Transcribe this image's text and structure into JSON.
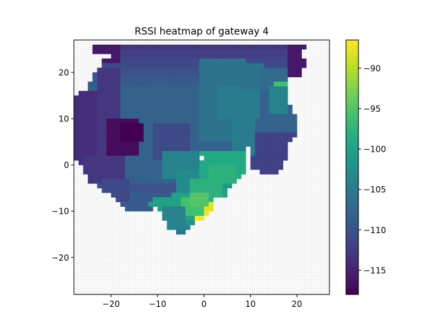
{
  "chart_data": {
    "type": "heatmap",
    "title": "RSSI heatmap of gateway 4",
    "xlabel": "",
    "ylabel": "",
    "xlim": [
      -28,
      27
    ],
    "ylim": [
      -28,
      27
    ],
    "grid": true,
    "colormap": "viridis",
    "colorbar": {
      "vmin": -118,
      "vmax": -86.5,
      "ticks": [
        -115,
        -110,
        -105,
        -100,
        -95,
        -90
      ]
    },
    "x_ticks": [
      -20,
      -10,
      0,
      10,
      20
    ],
    "y_ticks": [
      -20,
      -10,
      0,
      10,
      20
    ],
    "cell_size": 1,
    "rows": [
      {
        "y": 25,
        "segments": [
          [
            -24,
            19,
            -113
          ],
          [
            20,
            21,
            -116
          ]
        ]
      },
      {
        "y": 24,
        "segments": [
          [
            -24,
            20,
            -112
          ]
        ]
      },
      {
        "y": 23,
        "segments": [
          [
            -20,
            20,
            -112
          ]
        ]
      },
      {
        "y": 22,
        "segments": [
          [
            -22,
            21,
            -111
          ]
        ]
      },
      {
        "y": 21,
        "segments": [
          [
            -22,
            21,
            -111
          ]
        ]
      },
      {
        "y": 20,
        "segments": [
          [
            -23,
            20,
            -110
          ]
        ]
      },
      {
        "y": 19,
        "segments": [
          [
            -24,
            20,
            -110
          ]
        ]
      },
      {
        "y": 18,
        "segments": [
          [
            -24,
            17,
            -109
          ]
        ]
      },
      {
        "y": 17,
        "segments": [
          [
            -25,
            17,
            -109
          ]
        ]
      },
      {
        "y": 16,
        "segments": [
          [
            -25,
            17,
            -108
          ]
        ]
      },
      {
        "y": 15,
        "segments": [
          [
            -27,
            17,
            -108
          ]
        ]
      },
      {
        "y": 14,
        "segments": [
          [
            -28,
            17,
            -108
          ]
        ]
      },
      {
        "y": 13,
        "segments": [
          [
            -28,
            17,
            -108
          ]
        ]
      },
      {
        "y": 12,
        "segments": [
          [
            -28,
            18,
            -108
          ]
        ]
      },
      {
        "y": 11,
        "segments": [
          [
            -28,
            18,
            -108
          ]
        ]
      },
      {
        "y": 10,
        "segments": [
          [
            -28,
            19,
            -108
          ]
        ]
      },
      {
        "y": 9,
        "segments": [
          [
            -28,
            19,
            -108
          ]
        ]
      },
      {
        "y": 8,
        "segments": [
          [
            -28,
            19,
            -108
          ]
        ]
      },
      {
        "y": 7,
        "segments": [
          [
            -28,
            19,
            -108
          ]
        ]
      },
      {
        "y": 6,
        "segments": [
          [
            -28,
            10,
            -108
          ],
          [
            11,
            19,
            -112
          ]
        ]
      },
      {
        "y": 5,
        "segments": [
          [
            -28,
            10,
            -108
          ],
          [
            11,
            18,
            -112
          ]
        ]
      },
      {
        "y": 4,
        "segments": [
          [
            -28,
            9,
            -108
          ],
          [
            10,
            17,
            -112
          ]
        ]
      },
      {
        "y": 3,
        "segments": [
          [
            -28,
            8,
            -108
          ],
          [
            10,
            17,
            -112
          ]
        ]
      },
      {
        "y": 2,
        "segments": [
          [
            -28,
            -2,
            -108
          ],
          [
            -1,
            8,
            -104
          ],
          [
            10,
            17,
            -112
          ]
        ]
      },
      {
        "y": 1,
        "segments": [
          [
            -28,
            -2,
            -108
          ],
          [
            0,
            8,
            -103
          ],
          [
            10,
            17,
            -112
          ]
        ]
      },
      {
        "y": 0,
        "segments": [
          [
            -27,
            -2,
            -108
          ],
          [
            -1,
            8,
            -102
          ],
          [
            10,
            16,
            -112
          ]
        ]
      },
      {
        "y": -1,
        "segments": [
          [
            -26,
            -2,
            -108
          ],
          [
            -1,
            8,
            -101
          ],
          [
            10,
            16,
            -112
          ]
        ]
      },
      {
        "y": -2,
        "segments": [
          [
            -26,
            -2,
            -108
          ],
          [
            -1,
            8,
            -100
          ],
          [
            12,
            15,
            -112
          ]
        ]
      },
      {
        "y": -3,
        "segments": [
          [
            -25,
            -2,
            -108
          ],
          [
            -1,
            7,
            -100
          ]
        ]
      },
      {
        "y": -4,
        "segments": [
          [
            -25,
            -2,
            -108
          ],
          [
            -1,
            6,
            -100
          ]
        ]
      },
      {
        "y": -5,
        "segments": [
          [
            -23,
            -4,
            -110
          ],
          [
            -3,
            5,
            -101
          ]
        ]
      },
      {
        "y": -6,
        "segments": [
          [
            -22,
            -5,
            -110
          ],
          [
            -4,
            4,
            -100
          ]
        ]
      },
      {
        "y": -7,
        "segments": [
          [
            -20,
            -8,
            -109
          ],
          [
            -7,
            4,
            -100
          ]
        ]
      },
      {
        "y": -8,
        "segments": [
          [
            -19,
            -12,
            -109
          ],
          [
            -11,
            -1,
            -100
          ],
          [
            0,
            1,
            -90
          ]
        ]
      },
      {
        "y": -9,
        "segments": [
          [
            -18,
            -13,
            -109
          ],
          [
            -12,
            -2,
            -100
          ],
          [
            -1,
            1,
            -88
          ]
        ]
      },
      {
        "y": -10,
        "segments": [
          [
            -17,
            -12,
            -109
          ],
          [
            -10,
            -2,
            -100
          ],
          [
            -1,
            1,
            -88
          ]
        ]
      },
      {
        "y": -11,
        "segments": [
          [
            -9,
            -3,
            -100
          ],
          [
            -2,
            0,
            -87
          ]
        ]
      },
      {
        "y": -12,
        "segments": [
          [
            -9,
            -3,
            -100
          ],
          [
            -2,
            -1,
            -87
          ]
        ]
      },
      {
        "y": -13,
        "segments": [
          [
            -8,
            -3,
            -102
          ]
        ]
      },
      {
        "y": -14,
        "segments": [
          [
            -8,
            -4,
            -104
          ]
        ]
      },
      {
        "y": -15,
        "segments": [
          [
            -6,
            -5,
            -106
          ]
        ]
      }
    ],
    "patches": [
      {
        "x": [
          -24,
          -19
        ],
        "y": [
          22,
          25
        ],
        "value": -116
      },
      {
        "x": [
          -28,
          -24
        ],
        "y": [
          -2,
          15
        ],
        "value": -114
      },
      {
        "x": [
          -23,
          -19
        ],
        "y": [
          0,
          20
        ],
        "value": -113
      },
      {
        "x": [
          -21,
          -15
        ],
        "y": [
          2,
          9
        ],
        "value": -117
      },
      {
        "x": [
          -18,
          -14
        ],
        "y": [
          5,
          8
        ],
        "value": -118
      },
      {
        "x": [
          -26,
          -18
        ],
        "y": [
          -4,
          1
        ],
        "value": -113
      },
      {
        "x": [
          -22,
          -17
        ],
        "y": [
          -8,
          -4
        ],
        "value": -111
      },
      {
        "x": [
          -11,
          -4
        ],
        "y": [
          1,
          8
        ],
        "value": -111
      },
      {
        "x": [
          -1,
          8
        ],
        "y": [
          5,
          22
        ],
        "value": -106
      },
      {
        "x": [
          3,
          11
        ],
        "y": [
          10,
          16
        ],
        "value": -105
      },
      {
        "x": [
          8,
          12
        ],
        "y": [
          16,
          21
        ],
        "value": -106
      },
      {
        "x": [
          12,
          17
        ],
        "y": [
          16,
          20
        ],
        "value": -107
      },
      {
        "x": [
          6,
          10
        ],
        "y": [
          2,
          9
        ],
        "value": -105
      },
      {
        "x": [
          -9,
          -1
        ],
        "y": [
          -3,
          2
        ],
        "value": -104
      },
      {
        "x": [
          -6,
          2
        ],
        "y": [
          -6,
          -2
        ],
        "value": -103
      },
      {
        "x": [
          -1,
          8
        ],
        "y": [
          -4,
          2
        ],
        "value": -99
      },
      {
        "x": [
          1,
          6
        ],
        "y": [
          -4,
          -1
        ],
        "value": -98
      },
      {
        "x": [
          -3,
          3
        ],
        "y": [
          -8,
          -4
        ],
        "value": -98
      },
      {
        "x": [
          -5,
          -1
        ],
        "y": [
          -11,
          -8
        ],
        "value": -96
      },
      {
        "x": [
          -3,
          0
        ],
        "y": [
          -9,
          -7
        ],
        "value": -95
      },
      {
        "x": [
          -9,
          -5
        ],
        "y": [
          -13,
          -10
        ],
        "value": -104
      },
      {
        "x": [
          17,
          19
        ],
        "y": [
          14,
          16
        ],
        "value": -98
      },
      {
        "x": [
          15,
          17
        ],
        "y": [
          14,
          17
        ],
        "value": -96
      },
      {
        "x": [
          18,
          21
        ],
        "y": [
          19,
          25
        ],
        "value": -116
      },
      {
        "x": [
          14,
          17
        ],
        "y": [
          11,
          16
        ],
        "value": -104
      }
    ]
  }
}
